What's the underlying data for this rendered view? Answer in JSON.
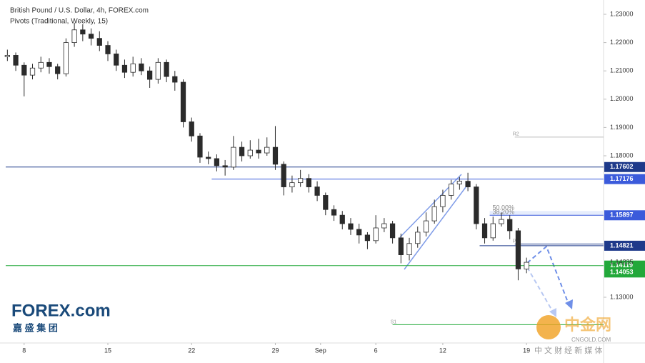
{
  "chart_data": {
    "type": "candlestick",
    "title": "British Pound / U.S. Dollar, 4h, FOREX.com",
    "subtitle": "Pivots (Traditional, Weekly, 15)",
    "color": "#2b2b2b",
    "x": [
      -1,
      -0.5,
      0,
      0.5,
      1,
      1.5,
      2,
      2.5,
      3,
      3.5,
      4,
      4.5,
      5,
      5.5,
      6,
      6.5,
      7,
      7.5,
      8,
      8.5,
      9,
      9.5,
      10,
      10.5,
      11,
      11.5,
      12,
      12.5,
      13,
      13.5,
      14,
      14.5,
      15,
      15.5,
      16,
      16.5,
      17,
      17.5,
      18,
      18.5,
      19,
      19.5,
      20,
      20.5,
      21,
      21.5,
      22,
      22.5,
      23,
      23.5,
      24,
      24.5,
      25,
      25.5,
      26,
      26.5,
      27,
      27.5,
      28,
      28.5,
      29,
      29.5,
      30
    ],
    "open": [
      1.215,
      1.2155,
      1.212,
      1.2085,
      1.211,
      1.213,
      1.2115,
      1.209,
      1.22,
      1.2245,
      1.223,
      1.2215,
      1.219,
      1.216,
      1.212,
      1.2095,
      1.2125,
      1.21,
      1.207,
      1.213,
      1.208,
      1.206,
      1.192,
      1.187,
      1.1795,
      1.179,
      1.1765,
      1.176,
      1.183,
      1.18,
      1.182,
      1.181,
      1.183,
      1.177,
      1.169,
      1.1705,
      1.172,
      1.169,
      1.166,
      1.161,
      1.159,
      1.156,
      1.154,
      1.152,
      1.15,
      1.1545,
      1.156,
      1.151,
      1.145,
      1.149,
      1.153,
      1.157,
      1.162,
      1.166,
      1.17,
      1.171,
      1.169,
      1.156,
      1.151,
      1.156,
      1.1575,
      1.1535,
      1.14
    ],
    "high": [
      1.2175,
      1.2165,
      1.213,
      1.2125,
      1.215,
      1.2145,
      1.2125,
      1.2215,
      1.227,
      1.2265,
      1.225,
      1.224,
      1.2205,
      1.2175,
      1.214,
      1.215,
      1.2145,
      1.2115,
      1.2145,
      1.214,
      1.21,
      1.207,
      1.1935,
      1.188,
      1.1815,
      1.1805,
      1.1785,
      1.187,
      1.185,
      1.1855,
      1.186,
      1.1865,
      1.1905,
      1.178,
      1.173,
      1.175,
      1.1735,
      1.171,
      1.167,
      1.1625,
      1.1605,
      1.158,
      1.156,
      1.153,
      1.159,
      1.158,
      1.157,
      1.1525,
      1.151,
      1.155,
      1.16,
      1.1645,
      1.168,
      1.1715,
      1.1725,
      1.174,
      1.17,
      1.158,
      1.1585,
      1.16,
      1.159,
      1.1545,
      1.144
    ],
    "low": [
      1.2135,
      1.21,
      1.201,
      1.207,
      1.2095,
      1.209,
      1.207,
      1.208,
      1.2185,
      1.2205,
      1.219,
      1.217,
      1.2135,
      1.21,
      1.2075,
      1.208,
      1.2085,
      1.204,
      1.2055,
      1.206,
      1.203,
      1.19,
      1.185,
      1.1775,
      1.177,
      1.1745,
      1.173,
      1.175,
      1.178,
      1.179,
      1.179,
      1.18,
      1.175,
      1.166,
      1.167,
      1.169,
      1.167,
      1.164,
      1.159,
      1.157,
      1.154,
      1.152,
      1.149,
      1.147,
      1.149,
      1.153,
      1.149,
      1.142,
      1.143,
      1.1475,
      1.1515,
      1.156,
      1.16,
      1.1645,
      1.168,
      1.1675,
      1.154,
      1.149,
      1.15,
      1.155,
      1.1505,
      1.136,
      1.1385
    ],
    "close": [
      1.2155,
      1.212,
      1.2085,
      1.211,
      1.213,
      1.2115,
      1.209,
      1.22,
      1.2245,
      1.223,
      1.2215,
      1.219,
      1.216,
      1.212,
      1.2095,
      1.2125,
      1.21,
      1.207,
      1.213,
      1.208,
      1.206,
      1.192,
      1.187,
      1.1795,
      1.179,
      1.1765,
      1.176,
      1.183,
      1.18,
      1.182,
      1.181,
      1.183,
      1.177,
      1.169,
      1.1705,
      1.172,
      1.169,
      1.166,
      1.161,
      1.159,
      1.156,
      1.154,
      1.152,
      1.15,
      1.1545,
      1.156,
      1.151,
      1.145,
      1.149,
      1.153,
      1.157,
      1.162,
      1.166,
      1.17,
      1.171,
      1.169,
      1.156,
      1.151,
      1.156,
      1.1575,
      1.1535,
      1.14,
      1.14235
    ],
    "xlim": [
      -1.1,
      34.6
    ],
    "xticks": [
      {
        "value": 0,
        "label": "8"
      },
      {
        "value": 5,
        "label": "15"
      },
      {
        "value": 10,
        "label": "22"
      },
      {
        "value": 15,
        "label": "29"
      },
      {
        "value": 17.7,
        "label": "Sep"
      },
      {
        "value": 21,
        "label": "6"
      },
      {
        "value": 25,
        "label": "12"
      },
      {
        "value": 30,
        "label": "19"
      }
    ],
    "ylim": [
      1.11384,
      1.23505
    ],
    "yticks": [
      {
        "value": 1.23,
        "label": "1.23000"
      },
      {
        "value": 1.22,
        "label": "1.22000"
      },
      {
        "value": 1.21,
        "label": "1.21000"
      },
      {
        "value": 1.2,
        "label": "1.20000"
      },
      {
        "value": 1.19,
        "label": "1.19000"
      },
      {
        "value": 1.18,
        "label": "1.18000"
      },
      {
        "value": 1.13,
        "label": "1.13000"
      }
    ],
    "levels": [
      {
        "value": 1.17602,
        "label": "1.17602",
        "color": "#1e3a8a",
        "x0": -1.1
      },
      {
        "value": 1.17176,
        "label": "1.17176",
        "color": "#3b5bdb",
        "x0": 11.2
      },
      {
        "value": 1.15897,
        "label": "1.15897",
        "color": "#3b5bdb",
        "x0": 27.8
      },
      {
        "value": 1.14821,
        "label": "1.14821",
        "color": "#1e3a8a",
        "x0": 27.2
      },
      {
        "value": 1.14119,
        "label": "1.14119",
        "color": "#22a83a",
        "x0": -1.1
      },
      {
        "value": 1.14053,
        "label": "1.14053",
        "color": "#22a83a"
      }
    ],
    "pivots": [
      {
        "label": "R2",
        "value": 1.1866,
        "x0": 29.3,
        "color": "#bbbbbb"
      },
      {
        "label": "P",
        "value": 1.1488,
        "x0": 29.3,
        "color": "#1e3a8a"
      },
      {
        "label": "S1",
        "value": 1.1203,
        "x0": 22.0,
        "color": "#22a83a"
      }
    ],
    "fib": [
      {
        "label": "50.00%",
        "value": 1.1605
      },
      {
        "label": "38.20%",
        "value": 1.159
      }
    ],
    "last_price": {
      "value": 1.14235,
      "label": "1.14235"
    }
  },
  "logo": {
    "name": "FOREX.com",
    "tagline": "嘉 盛 集 团"
  },
  "watermark": {
    "name": "中金网",
    "site": "CNGOLD.COM",
    "tagline": "中 文 财 经 新 媒 体"
  }
}
